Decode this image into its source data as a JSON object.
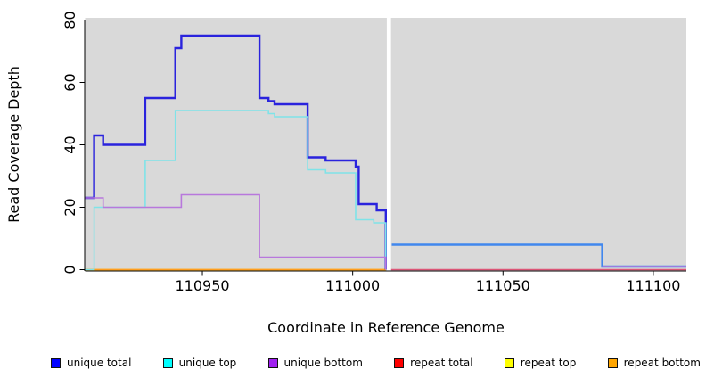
{
  "chart_data": {
    "type": "line",
    "subtype": "step-coverage",
    "title": "",
    "xlabel": "Coordinate in Reference Genome",
    "ylabel": "Read Coverage Depth",
    "x_domain": [
      110911,
      111111
    ],
    "ylim": [
      0,
      80
    ],
    "x_ticks": [
      110950,
      111000,
      111050,
      111100
    ],
    "y_ticks": [
      0,
      20,
      40,
      60,
      80
    ],
    "panel_bg": "#d9d9d9",
    "axis_color": "#000000",
    "grid": false,
    "gap": {
      "x_start": 111011.35,
      "x_end": 111012.75,
      "color": "#ffffff"
    },
    "step_mode": "after",
    "series": [
      {
        "name": "repeat top",
        "line_color": "#ffff00",
        "width": 1.4,
        "segments": [
          {
            "points": [
              [
                110911,
                0
              ],
              [
                111011,
                0
              ]
            ]
          }
        ]
      },
      {
        "name": "repeat bottom",
        "line_color": "#ff9d1f",
        "width": 1.8,
        "segments": [
          {
            "points": [
              [
                110911,
                0
              ],
              [
                111011,
                0
              ]
            ]
          }
        ]
      },
      {
        "name": "repeat total",
        "line_color": "#dd5577",
        "width": 1.5,
        "segments": [
          {
            "points": [
              [
                111012.8,
                0
              ],
              [
                111111,
                0
              ]
            ]
          }
        ]
      },
      {
        "name": "unique total",
        "line_color": "#2a23dd",
        "width": 2.4,
        "segments": [
          {
            "points": [
              [
                110911,
                23
              ],
              [
                110914,
                43
              ],
              [
                110917,
                40
              ],
              [
                110931,
                55
              ],
              [
                110941,
                71
              ],
              [
                110943,
                75
              ],
              [
                110969,
                55
              ],
              [
                110972,
                54
              ],
              [
                110974,
                53
              ],
              [
                110985,
                36
              ],
              [
                110991,
                35
              ],
              [
                111001,
                33
              ],
              [
                111002,
                21
              ],
              [
                111008,
                19
              ],
              [
                111011,
                0
              ]
            ]
          },
          {
            "color": "#4187ee",
            "points": [
              [
                111013,
                8
              ],
              [
                111083,
                1
              ],
              [
                111111,
                1
              ]
            ]
          }
        ]
      },
      {
        "name": "unique top",
        "line_color": "#7fe3e8",
        "width": 1.6,
        "segments": [
          {
            "points": [
              [
                110911,
                0
              ],
              [
                110914,
                20
              ],
              [
                110931,
                35
              ],
              [
                110941,
                51
              ],
              [
                110972,
                50
              ],
              [
                110974,
                49
              ],
              [
                110985,
                32
              ],
              [
                110991,
                31
              ],
              [
                111001,
                16
              ],
              [
                111007,
                15
              ],
              [
                111011,
                0
              ]
            ]
          }
        ]
      },
      {
        "name": "unique bottom",
        "line_color": "#b878dc",
        "width": 1.6,
        "segments": [
          {
            "points": [
              [
                110911,
                23
              ],
              [
                110917,
                20
              ],
              [
                110943,
                24
              ],
              [
                110969,
                4
              ],
              [
                111011,
                0
              ]
            ]
          },
          {
            "points": [
              [
                111083,
                1
              ],
              [
                111111,
                1
              ]
            ]
          }
        ]
      }
    ]
  },
  "legend": {
    "items": [
      {
        "label": "unique total",
        "color": "#0000ff"
      },
      {
        "label": "unique top",
        "color": "#00ffff"
      },
      {
        "label": "unique bottom",
        "color": "#a020f0"
      },
      {
        "label": "repeat total",
        "color": "#ff0000"
      },
      {
        "label": "repeat top",
        "color": "#ffff00"
      },
      {
        "label": "repeat bottom",
        "color": "#ffa500"
      }
    ]
  }
}
